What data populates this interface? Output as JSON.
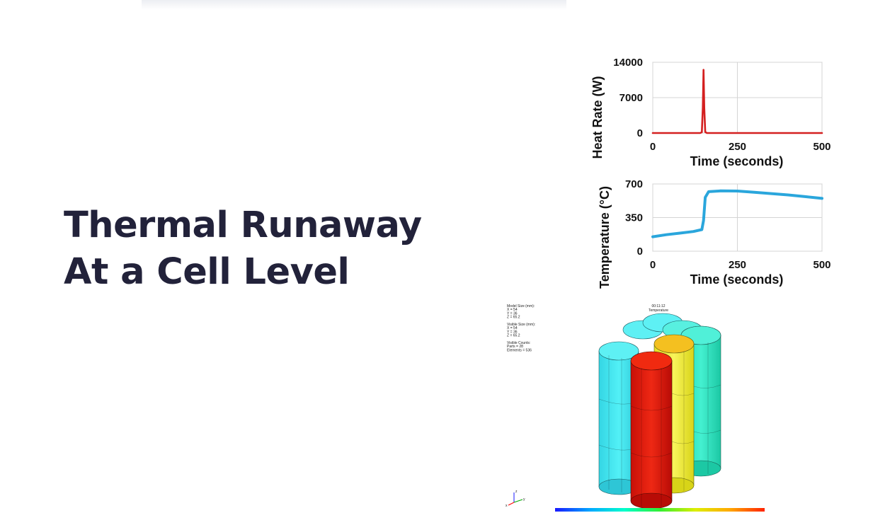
{
  "slide": {
    "title_line1": "Thermal Runaway",
    "title_line2": "At a Cell Level"
  },
  "chart_data": [
    {
      "type": "line",
      "title": "",
      "xlabel": "Time (seconds)",
      "ylabel": "Heat Rate (W)",
      "xlim": [
        0,
        500
      ],
      "ylim": [
        0,
        14000
      ],
      "xticks": [
        0,
        250,
        500
      ],
      "yticks": [
        0,
        7000,
        14000
      ],
      "grid": true,
      "series": [
        {
          "color": "#d42020",
          "x": [
            0,
            140,
            145,
            148,
            150,
            152,
            155,
            160,
            500
          ],
          "y": [
            0,
            0,
            150,
            5000,
            12500,
            5000,
            200,
            0,
            0
          ]
        }
      ]
    },
    {
      "type": "line",
      "title": "",
      "xlabel": "Time (seconds)",
      "ylabel": "Temperature (°C)",
      "xlim": [
        0,
        500
      ],
      "ylim": [
        0,
        700
      ],
      "xticks": [
        0,
        250,
        500
      ],
      "yticks": [
        0,
        350,
        700
      ],
      "grid": true,
      "series": [
        {
          "color": "#2aa6dc",
          "x": [
            0,
            40,
            80,
            120,
            145,
            150,
            155,
            165,
            200,
            250,
            300,
            350,
            400,
            450,
            500
          ],
          "y": [
            150,
            172,
            188,
            205,
            225,
            320,
            560,
            620,
            628,
            626,
            613,
            600,
            586,
            568,
            550
          ]
        }
      ]
    }
  ],
  "simulation": {
    "info_lines": [
      "Model Size (mm):",
      "X = 54",
      "Y = 36",
      "Z = 65.2",
      "",
      "Visible Size (mm):",
      "X = 54",
      "Y = 36",
      "Z = 65.2",
      "",
      "Visible Counts:",
      "Parts = 28",
      "Elements = 536"
    ],
    "time_text": "00:11:12",
    "quantity_text": "Temperature",
    "axis_x": "x",
    "axis_y": "y",
    "axis_z": "z",
    "colorbar_gradient": [
      "#1a1aff",
      "#00aaff",
      "#00ffcc",
      "#33ee33",
      "#ddee00",
      "#ffaa00",
      "#ff2200"
    ],
    "cell_colors": {
      "cold": "#40e4ee",
      "teal": "#2ee8c4",
      "warm": "#f2f040",
      "hot": "#e01b0e"
    }
  }
}
